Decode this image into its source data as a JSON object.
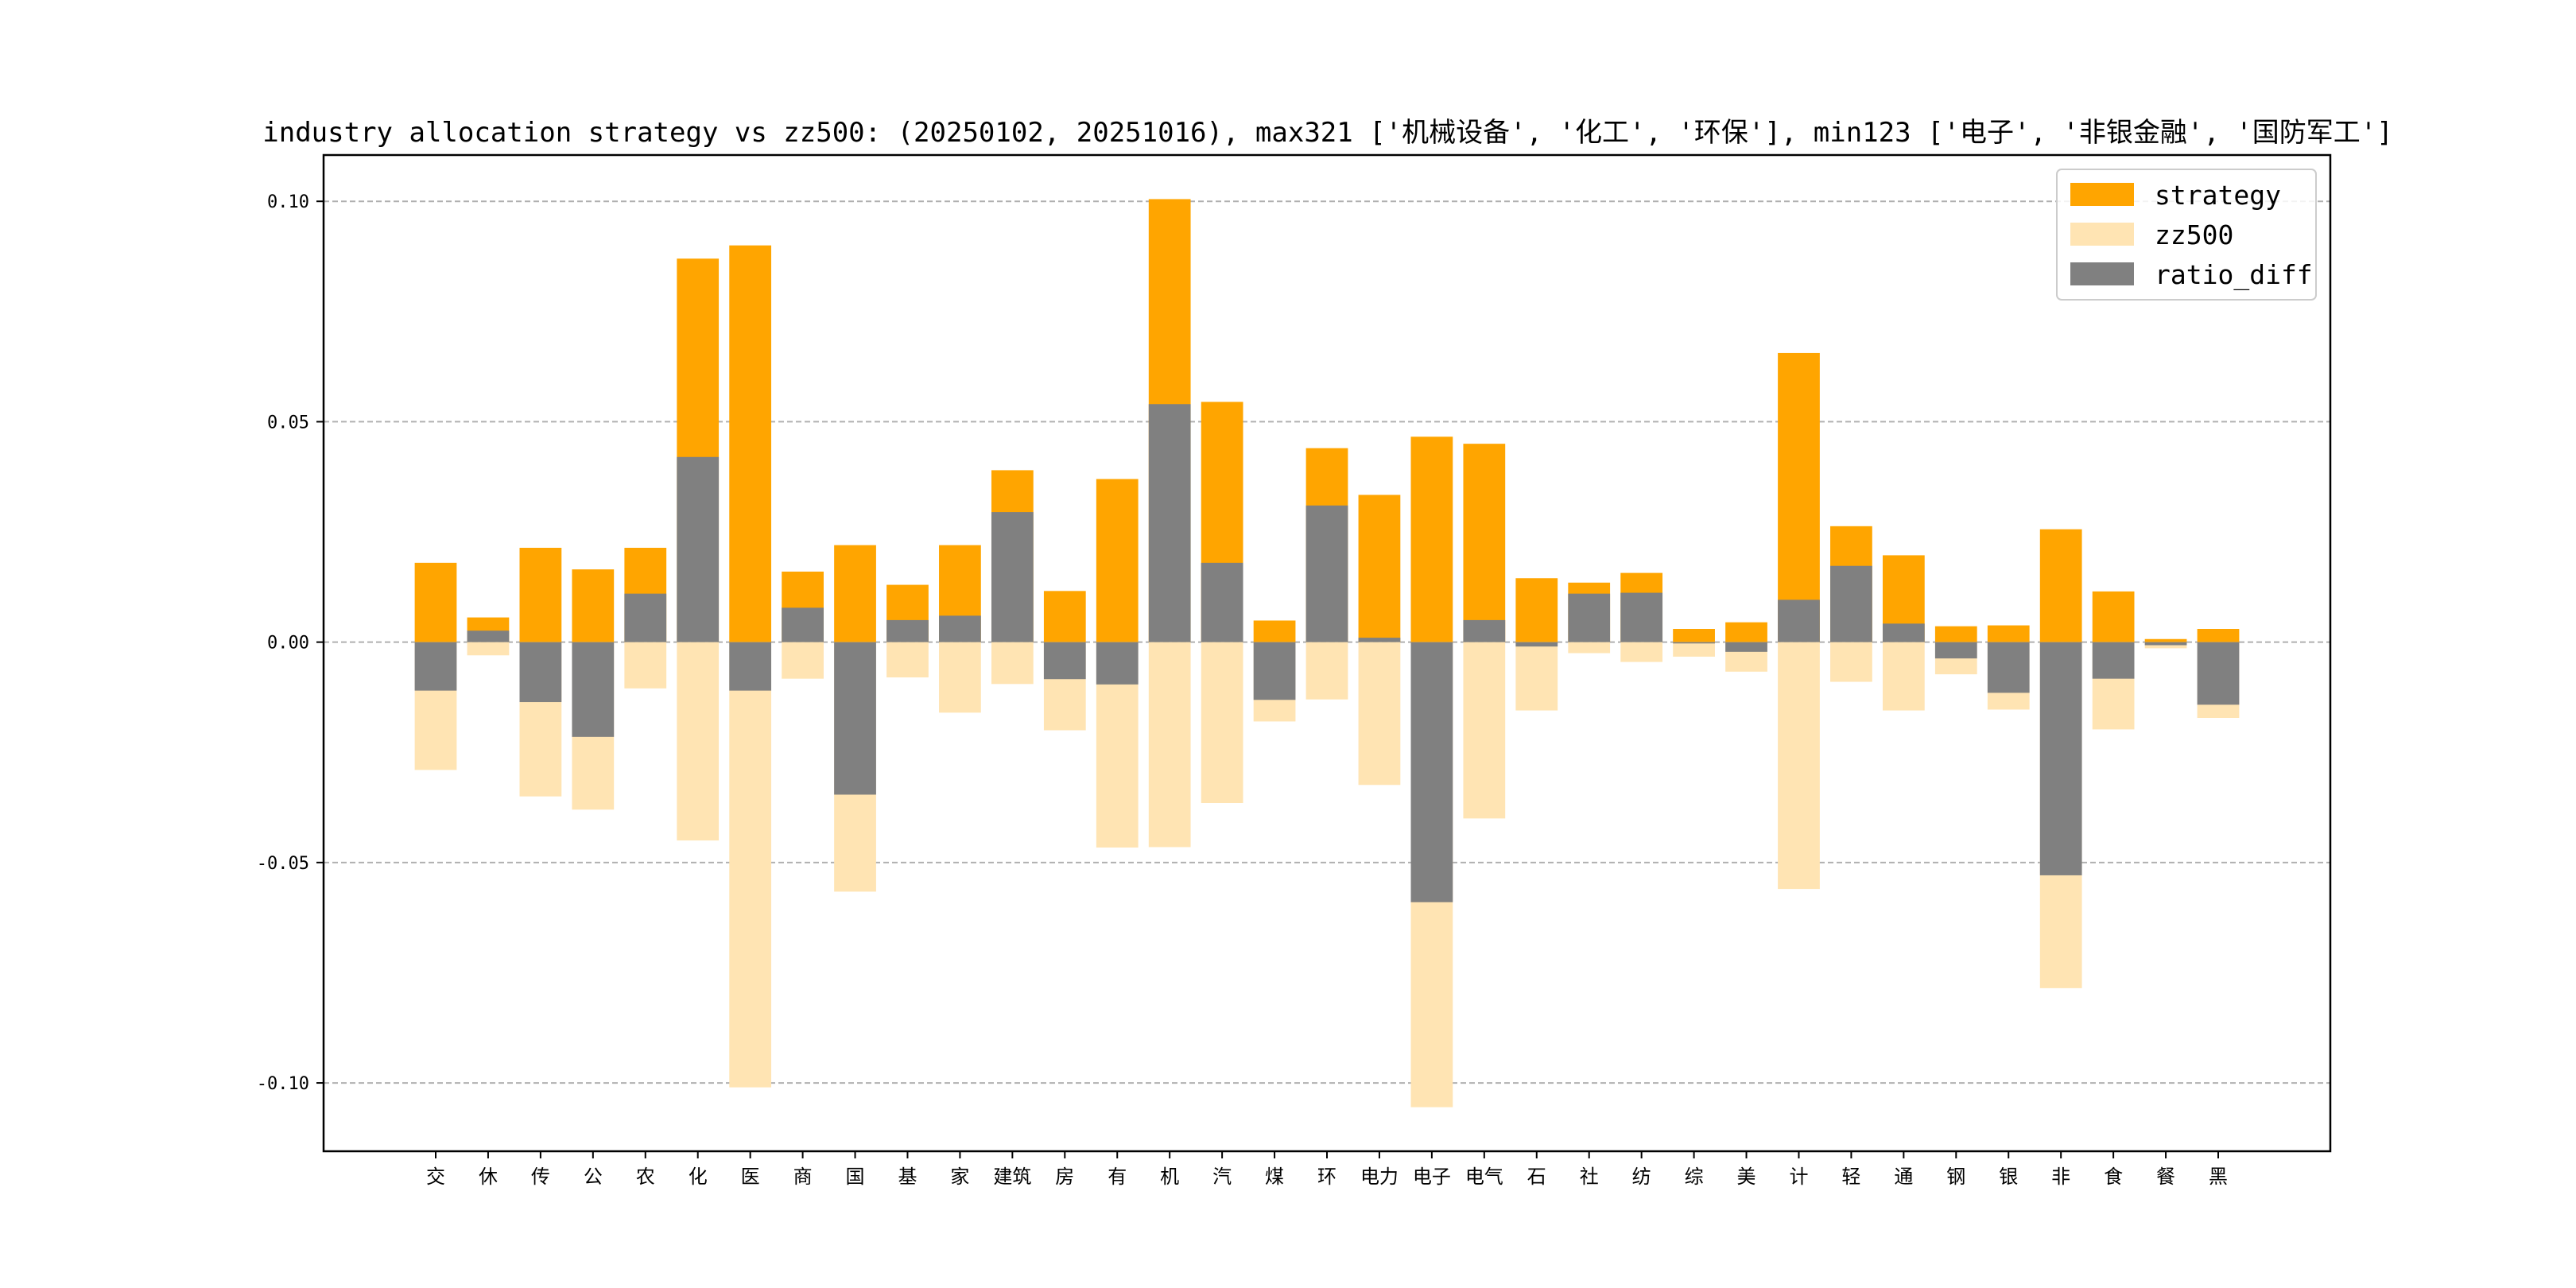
{
  "chart_data": {
    "type": "bar",
    "title": "industry allocation strategy vs zz500: (20250102, 20251016), max321 ['机械设备', '化工', '环保'], min123 ['电子', '非银金融', '国防军工']",
    "xlabel": "",
    "ylabel": "",
    "ylim": [
      -0.1155,
      0.1105
    ],
    "yticks": [
      0.1,
      0.05,
      0.0,
      -0.05,
      -0.1
    ],
    "ytick_labels": [
      "0.10",
      "0.05",
      "0.00",
      "-0.05",
      "-0.10"
    ],
    "grid": "y-dashed",
    "legend_position": "top-right",
    "categories": [
      "交",
      "休",
      "传",
      "公",
      "农",
      "化",
      "医",
      "商",
      "国",
      "基",
      "家",
      "建筑",
      "房",
      "有",
      "机",
      "汽",
      "煤",
      "环",
      "电力",
      "电子",
      "电气",
      "石",
      "社",
      "纺",
      "综",
      "美",
      "计",
      "轻",
      "通",
      "钢",
      "银",
      "非",
      "食",
      "餐",
      "黑"
    ],
    "series": [
      {
        "name": "strategy",
        "color": "#FFA500",
        "values": [
          0.018,
          0.0056,
          0.0214,
          0.0165,
          0.0214,
          0.087,
          0.09,
          0.016,
          0.022,
          0.013,
          0.022,
          0.039,
          0.0116,
          0.037,
          0.1005,
          0.0545,
          0.0049,
          0.044,
          0.0334,
          0.0466,
          0.045,
          0.0145,
          0.0135,
          0.0157,
          0.003,
          0.0045,
          0.0656,
          0.0263,
          0.0197,
          0.0036,
          0.0038,
          0.0256,
          0.0115,
          0.0007,
          0.003
        ]
      },
      {
        "name": "zz500",
        "color": "#FFE4B3",
        "values": [
          -0.029,
          -0.003,
          -0.035,
          -0.038,
          -0.0105,
          -0.045,
          -0.101,
          -0.0083,
          -0.0566,
          -0.008,
          -0.016,
          -0.0095,
          -0.02,
          -0.0466,
          -0.0465,
          -0.0365,
          -0.018,
          -0.013,
          -0.0324,
          -0.1055,
          -0.04,
          -0.0155,
          -0.0025,
          -0.0045,
          -0.0033,
          -0.0067,
          -0.056,
          -0.009,
          -0.0155,
          -0.0073,
          -0.0153,
          -0.0785,
          -0.0198,
          -0.0014,
          -0.0172
        ]
      },
      {
        "name": "ratio_diff",
        "color": "#808080",
        "values": [
          -0.011,
          0.0026,
          -0.0136,
          -0.0215,
          0.011,
          0.042,
          -0.011,
          0.0078,
          -0.0346,
          0.005,
          0.006,
          0.0295,
          -0.0084,
          -0.0096,
          0.054,
          0.018,
          -0.0131,
          0.031,
          0.001,
          -0.059,
          0.005,
          -0.001,
          0.011,
          0.0112,
          -0.0003,
          -0.0022,
          0.0096,
          0.0173,
          0.0042,
          -0.0037,
          -0.0115,
          -0.0529,
          -0.0083,
          -0.0007,
          -0.0142
        ]
      }
    ]
  }
}
